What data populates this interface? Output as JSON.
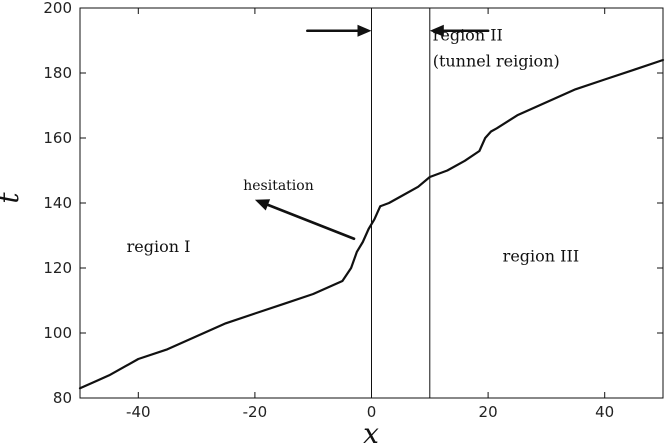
{
  "chart_data": {
    "type": "line",
    "title": "",
    "xlabel": "x",
    "ylabel": "t",
    "xlim": [
      -50,
      50
    ],
    "ylim": [
      80,
      200
    ],
    "xticks": [
      -40,
      -20,
      0,
      20,
      40
    ],
    "yticks": [
      80,
      100,
      120,
      140,
      160,
      180,
      200
    ],
    "xtick_labels": [
      "-40",
      "-20",
      "0",
      "20",
      "40"
    ],
    "ytick_labels": [
      "80",
      "100",
      "120",
      "140",
      "160",
      "180",
      "200"
    ],
    "grid": false,
    "boundaries": [
      0,
      10
    ],
    "series": [
      {
        "x": [
          -50,
          -45,
          -40,
          -35,
          -30,
          -25,
          -20,
          -15,
          -10,
          -5,
          -3.5,
          -2.5,
          -1.5,
          -0.5,
          0.5,
          1.5,
          3,
          5,
          8,
          10,
          13,
          16,
          18.5,
          19.5,
          20.5,
          21.5,
          25,
          30,
          35,
          40,
          45,
          50
        ],
        "y": [
          83,
          87,
          92,
          95,
          99,
          103,
          106,
          109,
          112,
          116,
          120,
          125,
          128,
          132,
          135,
          139,
          140,
          142,
          145,
          148,
          150,
          153,
          156,
          160,
          162,
          163,
          167,
          171,
          175,
          178,
          181,
          184
        ]
      }
    ],
    "annotations": [
      {
        "text": "hesitation",
        "x": -22,
        "y": 144
      },
      {
        "text": "region I",
        "x": -42,
        "y": 125
      },
      {
        "text": "region II",
        "x": 10.5,
        "y": 190
      },
      {
        "text": "(tunnel reigion)",
        "x": 10.5,
        "y": 182
      },
      {
        "text": "region III",
        "x": 22.5,
        "y": 122
      }
    ],
    "arrows": [
      {
        "from": [
          -3,
          129
        ],
        "to": [
          -20,
          141
        ]
      },
      {
        "from": [
          -11,
          193
        ],
        "to": [
          0,
          193
        ]
      },
      {
        "from": [
          20,
          193
        ],
        "to": [
          10,
          193
        ]
      }
    ]
  }
}
